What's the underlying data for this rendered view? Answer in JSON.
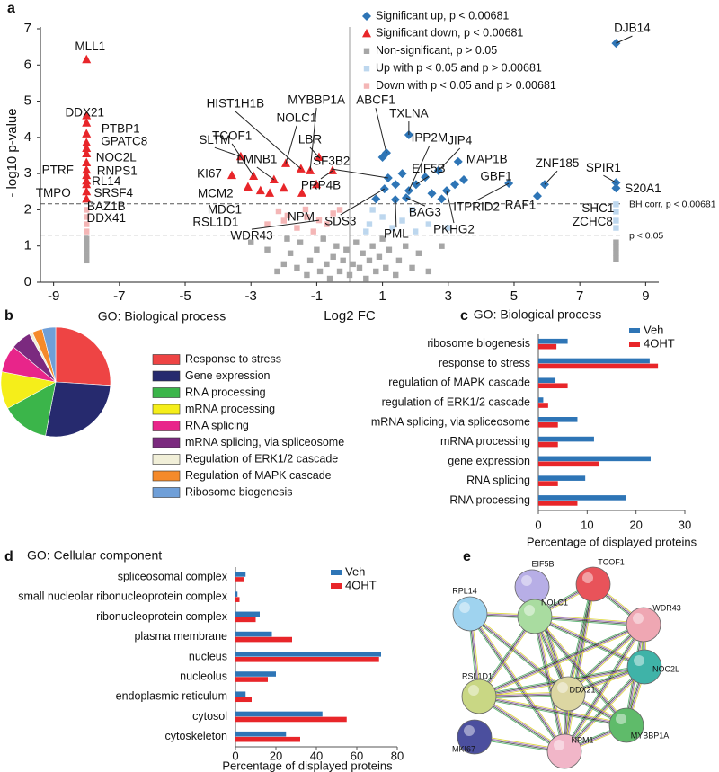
{
  "chart_data": [
    {
      "type": "scatter",
      "panel": "a",
      "xlabel": "Log2 FC",
      "ylabel": "- log10 p-value",
      "xlim": [
        -9.4,
        9.4
      ],
      "ylim": [
        0,
        7
      ],
      "xticks": [
        -9,
        -7,
        -5,
        -3,
        -1,
        1,
        3,
        5,
        7,
        9
      ],
      "yticks": [
        0,
        1,
        2,
        3,
        4,
        5,
        6,
        7
      ],
      "zero_line": true,
      "legend": "top-center",
      "hlines": [
        {
          "value": 2.167,
          "label": "BH corr. p < 0.00681"
        },
        {
          "value": 1.301,
          "label": "p < 0.05"
        }
      ],
      "series": [
        {
          "name": "Significant up, p < 0.00681",
          "color": "#2e75b6",
          "marker": "diamond",
          "x": [
            8.1,
            1.12,
            1.8,
            1.8,
            2.7,
            3.3,
            2.02,
            1.17,
            3.47,
            1.72,
            1.06,
            1.39,
            2.95,
            4.84,
            5.93,
            5.71,
            8.1,
            8.1,
            1.0,
            1.4,
            2.3,
            2.5,
            3.2,
            1.6,
            0.8,
            2.8
          ],
          "values": [
            6.6,
            3.57,
            4.07,
            2.53,
            3.08,
            3.33,
            2.7,
            2.88,
            2.83,
            2.33,
            2.58,
            2.28,
            2.53,
            2.73,
            2.7,
            2.38,
            2.75,
            2.6,
            3.45,
            2.7,
            2.9,
            2.45,
            2.7,
            3.0,
            2.3,
            2.3
          ],
          "labels": [
            "DJB14",
            "ABCF1",
            "TXLNA",
            "IPP2M",
            "JIP4",
            "MAP1B",
            "EIF5B",
            "SF3B2",
            "GBF1",
            "BAG3",
            "SDS3",
            "PML",
            "PKHG2",
            "ITPRID2",
            "ZNF185",
            "RAF1",
            "SPIR1",
            "S20A1",
            null,
            null,
            null,
            null,
            null,
            null,
            null,
            null
          ]
        },
        {
          "name": "Significant down, p < 0.00681",
          "color": "#e8262a",
          "marker": "triangle",
          "x": [
            -8,
            -8,
            -8,
            -8,
            -8,
            -8,
            -8,
            -8,
            -8,
            -8,
            -3.31,
            -3.58,
            -2.92,
            -1.48,
            -2.3,
            -1.94,
            -1.2,
            -0.93,
            -2.71,
            -0.52,
            -8,
            -8,
            -8,
            -8,
            -3.09,
            -2.43,
            -1.45,
            -1.01,
            -2.0
          ],
          "values": [
            6.15,
            4.4,
            4.1,
            3.85,
            3.55,
            3.3,
            2.95,
            2.7,
            2.5,
            2.3,
            3.47,
            2.95,
            2.93,
            3.13,
            2.83,
            3.28,
            3.08,
            3.45,
            2.53,
            3.08,
            4.6,
            3.7,
            3.1,
            2.8,
            2.63,
            2.46,
            2.46,
            2.7,
            2.6
          ],
          "labels": [
            "MLL1",
            "DDX21",
            "PTBP1",
            "GPATC8",
            "NOC2L",
            "RNPS1",
            "PTRF",
            "RL14",
            "SRSF4",
            "TMPO",
            "SLTM",
            "KI67",
            "TCOF1",
            "HIST1H1B",
            "LMNB1",
            "NOLC1",
            "MYBBP1A",
            "LBR",
            "MCM2",
            "PRP4B",
            null,
            null,
            null,
            null,
            null,
            null,
            null,
            null,
            null
          ]
        },
        {
          "name": "Non-significant, p > 0.05",
          "color": "#a6a6a6",
          "marker": "square",
          "x": [
            -8,
            -8,
            -8,
            -8,
            -8,
            8.1,
            8.1,
            8.1,
            8.1,
            -2.2,
            -2.0,
            -1.8,
            -1.6,
            -1.5,
            -1.3,
            -1.2,
            -1.0,
            -0.9,
            -0.8,
            -0.7,
            -0.6,
            -0.5,
            -0.4,
            -0.3,
            -0.2,
            -0.1,
            0.0,
            0.1,
            0.2,
            0.3,
            0.4,
            0.5,
            0.6,
            0.7,
            0.8,
            0.9,
            1.0,
            1.1,
            1.2,
            1.4,
            1.5,
            1.7,
            1.9,
            2.1,
            2.4,
            -2.5,
            -3.0,
            2.8,
            -1.9
          ],
          "values": [
            1.2,
            1.05,
            0.9,
            0.75,
            0.6,
            1.1,
            0.95,
            0.8,
            0.65,
            0.3,
            0.5,
            0.8,
            0.4,
            1.1,
            0.2,
            0.6,
            0.9,
            0.3,
            1.2,
            0.5,
            0.1,
            0.7,
            1.0,
            0.3,
            0.6,
            0.9,
            0.2,
            0.5,
            1.1,
            0.4,
            0.8,
            0.1,
            0.6,
            1.0,
            0.3,
            0.7,
            1.2,
            0.4,
            0.9,
            0.2,
            0.6,
            1.0,
            0.4,
            0.8,
            0.3,
            0.9,
            1.1,
            1.0,
            1.2
          ]
        },
        {
          "name": "Up with p < 0.05 and p > 0.00681",
          "color": "#bdd7ee",
          "marker": "square",
          "x": [
            8.1,
            8.1,
            8.1,
            8.1,
            0.6,
            1.0,
            1.3,
            1.6,
            2.0,
            2.4,
            0.7,
            3.0,
            1.9,
            0.5
          ],
          "values": [
            2.15,
            1.95,
            1.7,
            1.5,
            1.6,
            1.8,
            1.5,
            1.7,
            1.4,
            1.6,
            2.0,
            1.5,
            2.0,
            1.4
          ],
          "labels": [
            "SHC1",
            "ZCHC8",
            null,
            null,
            null,
            null,
            null,
            null,
            null,
            null,
            null,
            null,
            null,
            null
          ]
        },
        {
          "name": "Down with p < 0.05 and p > 0.00681",
          "color": "#f4b6b6",
          "marker": "square",
          "x": [
            -8,
            -8,
            -2.16,
            -1.89,
            -1.34,
            -0.93,
            -8,
            -8,
            -1.6,
            -1.1,
            -0.7,
            -0.5,
            -2.5,
            -0.3,
            -1.3,
            -2.0
          ],
          "values": [
            2.0,
            1.8,
            1.96,
            1.84,
            2.01,
            1.71,
            1.6,
            1.4,
            1.5,
            1.4,
            1.6,
            1.9,
            1.6,
            2.0,
            1.8,
            1.7
          ],
          "labels": [
            "BAZ1B",
            "DDX41",
            "MDC1",
            "RSL1D1",
            "NPM",
            "WDR43",
            null,
            null,
            null,
            null,
            null,
            null,
            null,
            null,
            null,
            null
          ]
        }
      ]
    },
    {
      "type": "pie",
      "panel": "b",
      "title": "GO: Biological process",
      "legend": "right",
      "categories": [
        "Response to stress",
        "Gene expression",
        "RNA processing",
        "mRNA processing",
        "RNA splicing",
        "mRNA splicing, via spliceosome",
        "Regulation of ERK1/2 cascade",
        "Regulation of MAPK cascade",
        "Ribosome biogenesis"
      ],
      "values": [
        26,
        27,
        14,
        11,
        8,
        6,
        1,
        3,
        4
      ],
      "colors": [
        "#ee4444",
        "#262a6e",
        "#3bb54a",
        "#f5ee1a",
        "#e8258a",
        "#7b2a7f",
        "#f1efd8",
        "#f58a2a",
        "#6f9fd8"
      ]
    },
    {
      "type": "bar",
      "panel": "c",
      "title": "GO: Biological process",
      "xlabel": "Percentage of displayed proteins",
      "orientation": "horizontal",
      "legend": "top-right",
      "xlim": [
        0,
        30
      ],
      "xticks": [
        0,
        10,
        20,
        30
      ],
      "categories": [
        "ribosome biogenesis",
        "response to stress",
        "regulation of MAPK cascade",
        "regulation of ERK1/2 cascade",
        "mRNA splicing, via spliceosome",
        "mRNA processing",
        "gene expression",
        "RNA splicing",
        "RNA processing"
      ],
      "series": [
        {
          "name": "Veh",
          "color": "#2e75b6",
          "values": [
            6,
            22.8,
            3.5,
            1,
            8,
            11.4,
            23,
            9.6,
            18
          ]
        },
        {
          "name": "4OHT",
          "color": "#e8262a",
          "values": [
            3.7,
            24.5,
            6,
            2,
            4,
            4,
            12.5,
            4,
            8
          ]
        }
      ]
    },
    {
      "type": "bar",
      "panel": "d",
      "title": "GO: Cellular component",
      "xlabel": "Percentage of displayed proteins",
      "orientation": "horizontal",
      "legend": "top-right",
      "xlim": [
        0,
        80
      ],
      "xticks": [
        0,
        20,
        40,
        60,
        80
      ],
      "categories": [
        "spliceosomal complex",
        "small nucleolar ribonucleoprotein complex",
        "ribonucleoprotein complex",
        "plasma membrane",
        "nucleus",
        "nucleolus",
        "endoplasmic reticulum",
        "cytosol",
        "cytoskeleton"
      ],
      "series": [
        {
          "name": "Veh",
          "color": "#2e75b6",
          "values": [
            5,
            1,
            12,
            18,
            72,
            20,
            5,
            43,
            25
          ]
        },
        {
          "name": "4OHT",
          "color": "#e8262a",
          "values": [
            4,
            2,
            10,
            28,
            71,
            16,
            8,
            55,
            32
          ]
        }
      ]
    },
    {
      "type": "network",
      "panel": "e",
      "nodes": [
        {
          "label": "EIF5B",
          "color": "#b7aee6"
        },
        {
          "label": "TCOF1",
          "color": "#e8535a"
        },
        {
          "label": "RPL14",
          "color": "#9fd3ef"
        },
        {
          "label": "NOLC1",
          "color": "#a9dca0"
        },
        {
          "label": "WDR43",
          "color": "#efa7b3"
        },
        {
          "label": "NOC2L",
          "color": "#3fb3a8"
        },
        {
          "label": "RSL1D1",
          "color": "#c9d784"
        },
        {
          "label": "DDX21",
          "color": "#dcd6a2"
        },
        {
          "label": "MKI67",
          "color": "#4b4f9e"
        },
        {
          "label": "MYBBP1A",
          "color": "#5fbb6a"
        },
        {
          "label": "NPM1",
          "color": "#f1b6c8"
        }
      ]
    }
  ]
}
